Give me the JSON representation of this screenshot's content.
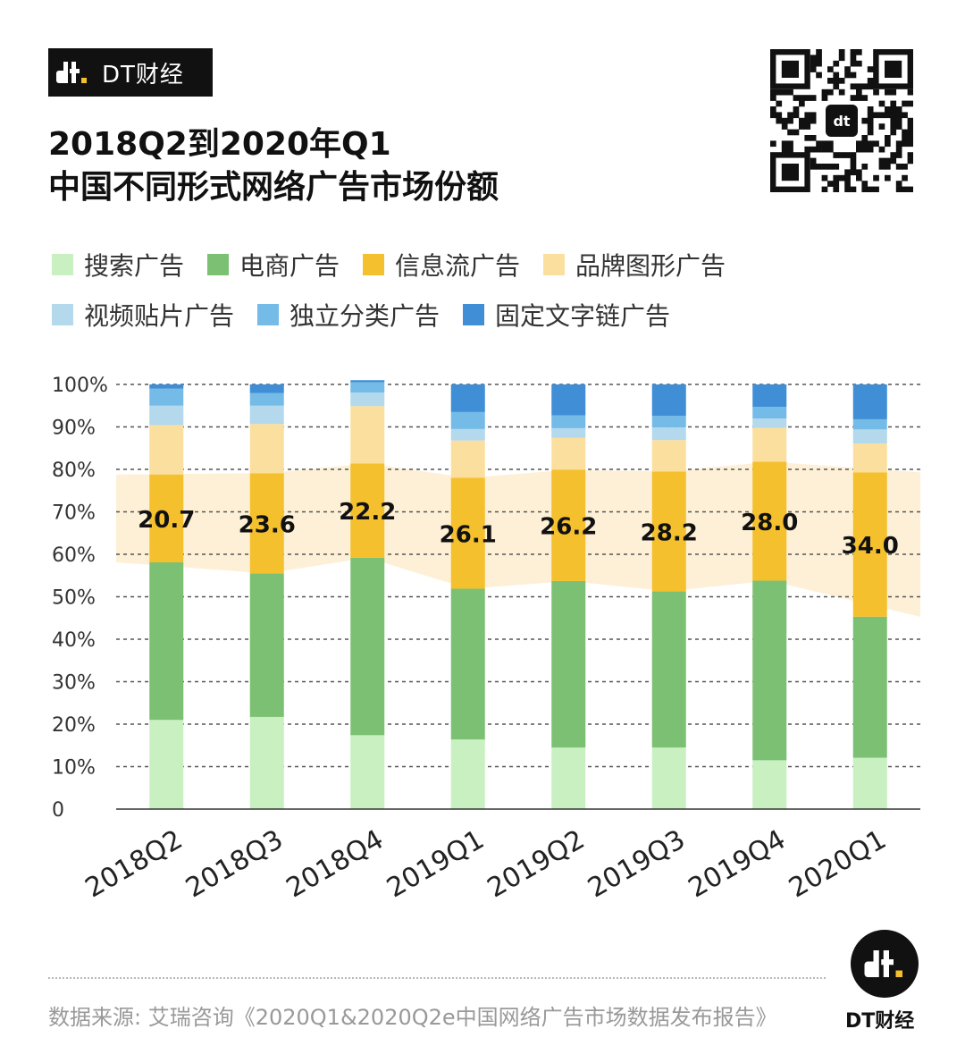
{
  "header": {
    "brand": "DT财经",
    "title_line1": "2018Q2到2020年Q1",
    "title_line2": "中国不同形式网络广告市场份额"
  },
  "colors": {
    "search": "#c8f0c0",
    "ecommerce": "#7cc073",
    "feed": "#f5c02e",
    "brand": "#fbdf9e",
    "video": "#b4d8ec",
    "classified": "#74bbe8",
    "textlink": "#3f8ed6",
    "band": "#fdf0d6"
  },
  "legend": [
    {
      "label": "搜索广告",
      "color": "#c8f0c0"
    },
    {
      "label": "电商广告",
      "color": "#7cc073"
    },
    {
      "label": "信息流广告",
      "color": "#f5c02e"
    },
    {
      "label": "品牌图形广告",
      "color": "#fbdf9e"
    },
    {
      "label": "视频贴片广告",
      "color": "#b4d8ec"
    },
    {
      "label": "独立分类广告",
      "color": "#74bbe8"
    },
    {
      "label": "固定文字链广告",
      "color": "#3f8ed6"
    }
  ],
  "chart_data": {
    "type": "bar",
    "stacked": true,
    "categories": [
      "2018Q2",
      "2018Q3",
      "2018Q4",
      "2019Q1",
      "2019Q2",
      "2019Q3",
      "2019Q4",
      "2020Q1"
    ],
    "series": [
      {
        "name": "搜索广告",
        "values": [
          21.0,
          21.7,
          17.4,
          16.4,
          14.5,
          14.5,
          11.5,
          12.1
        ]
      },
      {
        "name": "电商广告",
        "values": [
          37.1,
          33.8,
          41.8,
          35.5,
          39.2,
          36.8,
          42.3,
          33.2
        ]
      },
      {
        "name": "信息流广告",
        "values": [
          20.7,
          23.6,
          22.2,
          26.1,
          26.2,
          28.2,
          28.0,
          34.0
        ]
      },
      {
        "name": "品牌图形广告",
        "values": [
          11.6,
          11.6,
          13.5,
          8.8,
          7.5,
          7.4,
          8.0,
          6.8
        ]
      },
      {
        "name": "视频贴片广告",
        "values": [
          4.6,
          4.3,
          3.2,
          2.7,
          2.3,
          3.0,
          2.2,
          3.3
        ]
      },
      {
        "name": "独立分类广告",
        "values": [
          4.0,
          3.0,
          2.4,
          4.0,
          3.0,
          2.7,
          2.7,
          2.4
        ]
      },
      {
        "name": "固定文字链广告",
        "values": [
          1.0,
          2.0,
          0.5,
          6.5,
          7.3,
          7.4,
          5.3,
          8.2
        ]
      }
    ],
    "labeled_series": "信息流广告",
    "data_labels": [
      "20.7",
      "23.6",
      "22.2",
      "26.1",
      "26.2",
      "28.2",
      "28.0",
      "34.0"
    ],
    "y_ticks": [
      "0",
      "10%",
      "20%",
      "30%",
      "40%",
      "50%",
      "60%",
      "70%",
      "80%",
      "90%",
      "100%"
    ],
    "ylim": [
      0,
      100
    ],
    "title": "中国不同形式网络广告市场份额",
    "xlabel": "",
    "ylabel": ""
  },
  "footer": {
    "source": "数据来源: 艾瑞咨询《2020Q1&2020Q2e中国网络广告市场数据发布报告》",
    "brand": "DT财经"
  }
}
